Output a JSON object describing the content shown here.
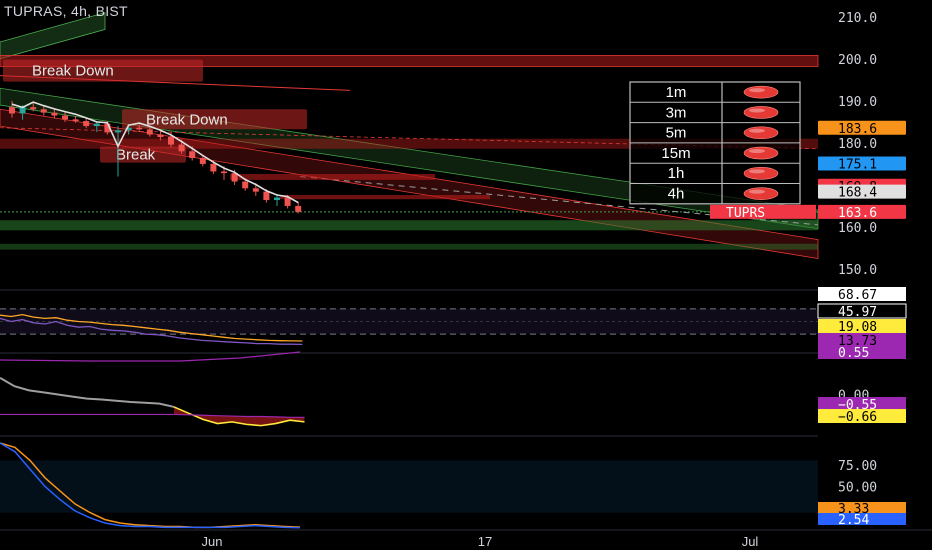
{
  "header": {
    "symbol": "TUPRAS",
    "interval": "4h",
    "exchange": "BIST"
  },
  "x_axis": {
    "labels": [
      "Jun",
      "17",
      "Jul"
    ]
  },
  "price_axis": {
    "ticks": [
      "210.0",
      "200.0",
      "190.0",
      "180.0",
      "170.0",
      "160.0",
      "150.0"
    ]
  },
  "price_tags": [
    {
      "value": "183.6",
      "bg": "#f7931a",
      "fg": "#000000"
    },
    {
      "value": "175.1",
      "bg": "#2196f3",
      "fg": "#000000"
    },
    {
      "value": "169.8",
      "bg": "#f23645",
      "fg": "#000000"
    },
    {
      "value": "168.4",
      "bg": "#e0e0e0",
      "fg": "#000000"
    },
    {
      "value": "163.6",
      "bg": "#f23645",
      "fg": "#ffffff",
      "label": "TUPRS"
    }
  ],
  "annotations": [
    "Break Down",
    "Break Down",
    "Break"
  ],
  "timeframe_table": {
    "rows": [
      {
        "tf": "1m",
        "status": "red"
      },
      {
        "tf": "3m",
        "status": "red"
      },
      {
        "tf": "5m",
        "status": "red"
      },
      {
        "tf": "15m",
        "status": "red"
      },
      {
        "tf": "1h",
        "status": "red"
      },
      {
        "tf": "4h",
        "status": "red"
      }
    ]
  },
  "pane_rsi": {
    "tags": [
      {
        "value": "68.67",
        "bg": "#ffffff",
        "fg": "#000000"
      },
      {
        "value": "45.97",
        "bg": "#000000",
        "fg": "#ffffff",
        "border": "#ffffff"
      },
      {
        "value": "19.08",
        "bg": "#ffeb3b",
        "fg": "#000000"
      },
      {
        "value": "13.73",
        "bg": "#9c27b0",
        "fg": "#000000"
      }
    ]
  },
  "pane_macd": {
    "ticks": [
      "0.00"
    ],
    "tags": [
      {
        "value": "0.55",
        "bg": "#9c27b0",
        "fg": "#ffffff"
      },
      {
        "value": "−0.55",
        "bg": "#9c27b0",
        "fg": "#ffffff"
      },
      {
        "value": "−0.66",
        "bg": "#ffeb3b",
        "fg": "#000000"
      }
    ]
  },
  "pane_stoch": {
    "ticks": [
      "75.00",
      "50.00",
      "25.00"
    ],
    "tags": [
      {
        "value": "3.33",
        "bg": "#f7931a",
        "fg": "#000000"
      },
      {
        "value": "2.54",
        "bg": "#2962ff",
        "fg": "#ffffff"
      }
    ]
  },
  "chart_data": [
    {
      "type": "candlestick",
      "title": "TUPRAS, 4h, BIST",
      "ylim": [
        145,
        214
      ],
      "ticks": [
        150,
        160,
        170,
        180,
        190,
        200,
        210
      ],
      "ohlc": [
        [
          188.5,
          190.0,
          186.0,
          187.0
        ],
        [
          187.0,
          189.0,
          185.5,
          188.5
        ],
        [
          188.5,
          189.5,
          187.5,
          188.0
        ],
        [
          188.0,
          188.8,
          186.5,
          187.2
        ],
        [
          187.2,
          188.0,
          185.8,
          186.5
        ],
        [
          186.5,
          187.5,
          185.0,
          185.6
        ],
        [
          185.6,
          186.4,
          184.8,
          185.2
        ],
        [
          185.2,
          186.0,
          183.5,
          184.0
        ],
        [
          184.0,
          185.0,
          182.6,
          184.6
        ],
        [
          184.6,
          185.2,
          182.0,
          182.5
        ],
        [
          182.5,
          184.0,
          172.0,
          183.0
        ],
        [
          183.0,
          184.0,
          182.0,
          183.6
        ],
        [
          183.6,
          184.4,
          182.6,
          183.2
        ],
        [
          183.2,
          184.0,
          181.5,
          182.0
        ],
        [
          182.0,
          183.0,
          180.6,
          181.4
        ],
        [
          181.4,
          182.4,
          179.0,
          179.6
        ],
        [
          179.6,
          180.8,
          177.4,
          178.0
        ],
        [
          178.0,
          179.2,
          175.8,
          176.4
        ],
        [
          176.4,
          177.2,
          174.4,
          175.0
        ],
        [
          175.0,
          175.8,
          172.6,
          173.2
        ],
        [
          173.2,
          174.4,
          171.2,
          172.8
        ],
        [
          172.8,
          173.6,
          170.0,
          170.8
        ],
        [
          170.8,
          171.6,
          168.6,
          169.2
        ],
        [
          169.2,
          170.4,
          167.4,
          168.4
        ],
        [
          168.4,
          169.0,
          165.8,
          166.4
        ],
        [
          166.4,
          167.8,
          165.0,
          167.0
        ],
        [
          167.0,
          167.6,
          164.4,
          165.0
        ],
        [
          165.0,
          166.0,
          163.2,
          163.6
        ]
      ]
    },
    {
      "type": "line",
      "title": "RSI pane",
      "ylim": [
        0,
        100
      ],
      "series": [
        {
          "values": [
            60,
            58,
            61,
            57,
            55,
            56,
            52,
            50,
            49,
            47,
            45,
            44,
            42,
            40,
            38,
            36,
            33,
            31,
            29,
            27,
            25,
            23,
            22,
            21,
            20,
            19.5,
            19.2,
            19.08
          ],
          "color": "#ffa726"
        },
        {
          "values": [
            55,
            50,
            53,
            48,
            46,
            50,
            44,
            41,
            42,
            38,
            36,
            35,
            33,
            30,
            29,
            27,
            24,
            22,
            20,
            19,
            18,
            17,
            16,
            15,
            15,
            14,
            14,
            13.73
          ],
          "color": "#7e57c2"
        }
      ]
    },
    {
      "type": "line",
      "title": "MACD pane",
      "ylim": [
        -1,
        1
      ],
      "series": [
        {
          "values": [
            0.4,
            0.2,
            0.1,
            0.05,
            0.0,
            -0.05,
            -0.1,
            -0.12,
            -0.15,
            -0.18,
            -0.2,
            -0.22,
            -0.3,
            -0.45,
            -0.6,
            -0.7,
            -0.66,
            -0.72,
            -0.75,
            -0.7,
            -0.62,
            -0.66
          ],
          "color": "#ffeb3b"
        },
        {
          "values": [
            -0.48,
            -0.48,
            -0.48,
            -0.48,
            -0.48,
            -0.48,
            -0.48,
            -0.48,
            -0.48,
            -0.48,
            -0.48,
            -0.48,
            -0.48,
            -0.49,
            -0.5,
            -0.51,
            -0.52,
            -0.53,
            -0.53,
            -0.54,
            -0.55,
            -0.55
          ],
          "color": "#9c27b0"
        }
      ]
    },
    {
      "type": "line",
      "title": "Stoch pane",
      "ylim": [
        0,
        100
      ],
      "series": [
        {
          "values": [
            100,
            95,
            80,
            60,
            45,
            30,
            20,
            12,
            8,
            6,
            5,
            4,
            4,
            3,
            3,
            4,
            5,
            6,
            5,
            4,
            3.33
          ],
          "color": "#f7931a"
        },
        {
          "values": [
            100,
            90,
            70,
            50,
            35,
            22,
            14,
            8,
            5,
            4,
            4,
            3,
            3,
            3,
            3,
            3,
            4,
            5,
            4,
            3,
            2.54
          ],
          "color": "#2962ff"
        }
      ]
    }
  ]
}
